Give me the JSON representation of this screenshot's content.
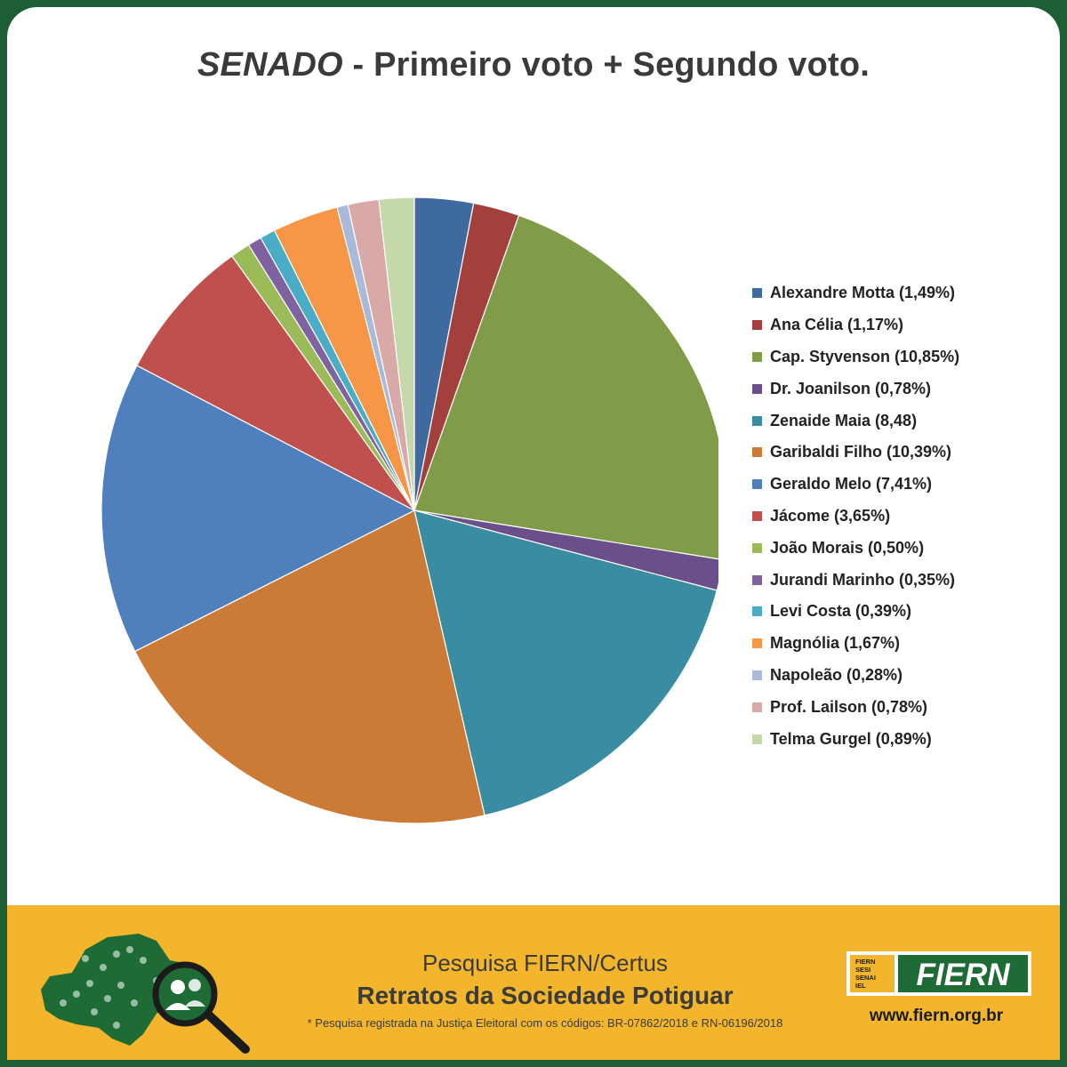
{
  "header": {
    "title_italic": "SENADO",
    "title_rest": " - Primeiro voto + Segundo voto."
  },
  "chart_data": {
    "type": "pie",
    "title": "SENADO - Primeiro voto + Segundo voto.",
    "start_angle_deg": 0,
    "direction": "clockwise",
    "legend_position": "right",
    "slices": [
      {
        "name": "Alexandre Motta",
        "value": 1.49,
        "label": "Alexandre Motta (1,49%)",
        "color": "#3f6aa0"
      },
      {
        "name": "Ana Célia",
        "value": 1.17,
        "label": "Ana Célia (1,17%)",
        "color": "#a33f3d"
      },
      {
        "name": "Cap. Styvenson",
        "value": 10.85,
        "label": "Cap. Styvenson (10,85%)",
        "color": "#819c49"
      },
      {
        "name": "Dr. Joanilson",
        "value": 0.78,
        "label": "Dr. Joanilson (0,78%)",
        "color": "#6b4f8a"
      },
      {
        "name": "Zenaide Maia",
        "value": 8.48,
        "label": "Zenaide Maia (8,48)",
        "color": "#3a8ca3"
      },
      {
        "name": "Garibaldi Filho",
        "value": 10.39,
        "label": "Garibaldi Filho (10,39%)",
        "color": "#cc7b37"
      },
      {
        "name": "Geraldo Melo",
        "value": 7.41,
        "label": "Geraldo Melo (7,41%)",
        "color": "#4f80bd"
      },
      {
        "name": "Jácome",
        "value": 3.65,
        "label": "Jácome (3,65%)",
        "color": "#c0504d"
      },
      {
        "name": "João Morais",
        "value": 0.5,
        "label": "João Morais (0,50%)",
        "color": "#9bbb59"
      },
      {
        "name": "Jurandi Marinho",
        "value": 0.35,
        "label": "Jurandi Marinho (0,35%)",
        "color": "#7f63a0"
      },
      {
        "name": "Levi Costa",
        "value": 0.39,
        "label": "Levi Costa (0,39%)",
        "color": "#4bacc6"
      },
      {
        "name": "Magnólia",
        "value": 1.67,
        "label": "Magnólia (1,67%)",
        "color": "#f79646"
      },
      {
        "name": "Napoleão",
        "value": 0.28,
        "label": "Napoleão (0,28%)",
        "color": "#a9b9da"
      },
      {
        "name": "Prof. Lailson",
        "value": 0.78,
        "label": "Prof. Lailson (0,78%)",
        "color": "#d9a9a8"
      },
      {
        "name": "Telma Gurgel",
        "value": 0.89,
        "label": "Telma Gurgel (0,89%)",
        "color": "#c5d8a9"
      }
    ]
  },
  "footer": {
    "survey_name": "Pesquisa FIERN/Certus",
    "survey_title": "Retratos da Sociedade Potiguar",
    "registration_note": "* Pesquisa registrada na Justiça Eleitoral com os códigos: BR-07862/2018 e RN-06196/2018",
    "logo_text": "FIERN",
    "logo_small_lines": [
      "FIERN",
      "SESI",
      "SENAI",
      "IEL"
    ],
    "website": "www.fiern.org.br",
    "background_color": "#f2b52b",
    "brand_color": "#1e6b35",
    "icons": [
      "rio-grande-do-norte-map-icon",
      "magnifier-people-icon"
    ]
  }
}
